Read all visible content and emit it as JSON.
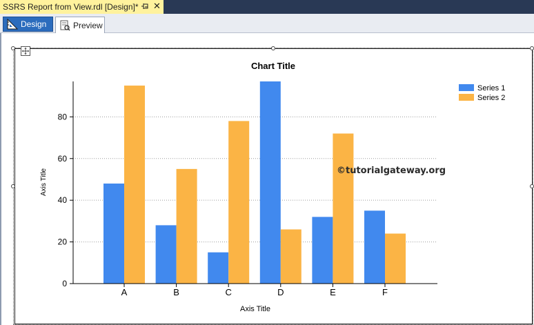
{
  "window": {
    "doc_tab_title": "SSRS Report from View.rdl [Design]*",
    "pin_icon": "pin-icon",
    "close_glyph": "✕"
  },
  "view_tabs": [
    {
      "label": "Design",
      "icon": "design-ruler-icon",
      "active": true
    },
    {
      "label": "Preview",
      "icon": "preview-report-icon",
      "active": false
    }
  ],
  "watermark": "©tutorialgateway.org",
  "colors": {
    "series1": "#4189ee",
    "series2": "#fbb445",
    "active_tab": "#2b6cbd",
    "doc_tab": "#fff29d"
  },
  "chart_data": {
    "type": "bar",
    "title": "Chart Title",
    "xlabel": "Axis Title",
    "ylabel": "Axis Title",
    "categories": [
      "A",
      "B",
      "C",
      "D",
      "E",
      "F"
    ],
    "series": [
      {
        "name": "Series 1",
        "values": [
          48,
          28,
          15,
          97,
          32,
          35
        ]
      },
      {
        "name": "Series 2",
        "values": [
          95,
          55,
          78,
          26,
          72,
          24
        ]
      }
    ],
    "ylim": [
      0,
      97
    ],
    "yticks": [
      0,
      20,
      40,
      60,
      80
    ],
    "grid": true,
    "legend": "top-right"
  }
}
